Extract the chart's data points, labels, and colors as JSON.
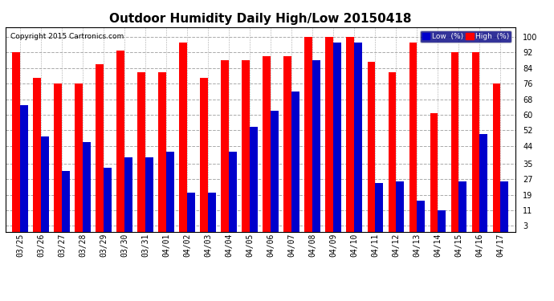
{
  "title": "Outdoor Humidity Daily High/Low 20150418",
  "copyright": "Copyright 2015 Cartronics.com",
  "yticks": [
    3,
    11,
    19,
    27,
    35,
    44,
    52,
    60,
    68,
    76,
    84,
    92,
    100
  ],
  "ylim": [
    0,
    105
  ],
  "dates": [
    "03/25",
    "03/26",
    "03/27",
    "03/28",
    "03/29",
    "03/30",
    "03/31",
    "04/01",
    "04/02",
    "04/03",
    "04/04",
    "04/05",
    "04/06",
    "04/07",
    "04/08",
    "04/09",
    "04/10",
    "04/11",
    "04/12",
    "04/13",
    "04/14",
    "04/15",
    "04/16",
    "04/17"
  ],
  "high": [
    92,
    79,
    76,
    76,
    86,
    93,
    82,
    82,
    97,
    79,
    88,
    88,
    90,
    90,
    100,
    100,
    100,
    87,
    82,
    97,
    61,
    92,
    92,
    76
  ],
  "low": [
    65,
    49,
    31,
    46,
    33,
    38,
    38,
    41,
    20,
    20,
    41,
    54,
    62,
    72,
    88,
    97,
    97,
    25,
    26,
    16,
    11,
    26,
    50,
    26
  ],
  "bar_color_high": "#ff0000",
  "bar_color_low": "#0000cc",
  "background_color": "#ffffff",
  "grid_color": "#aaaaaa",
  "title_fontsize": 11,
  "tick_fontsize": 7,
  "bar_width": 0.38,
  "legend_high_label": "High  (%)",
  "legend_low_label": "Low  (%)"
}
